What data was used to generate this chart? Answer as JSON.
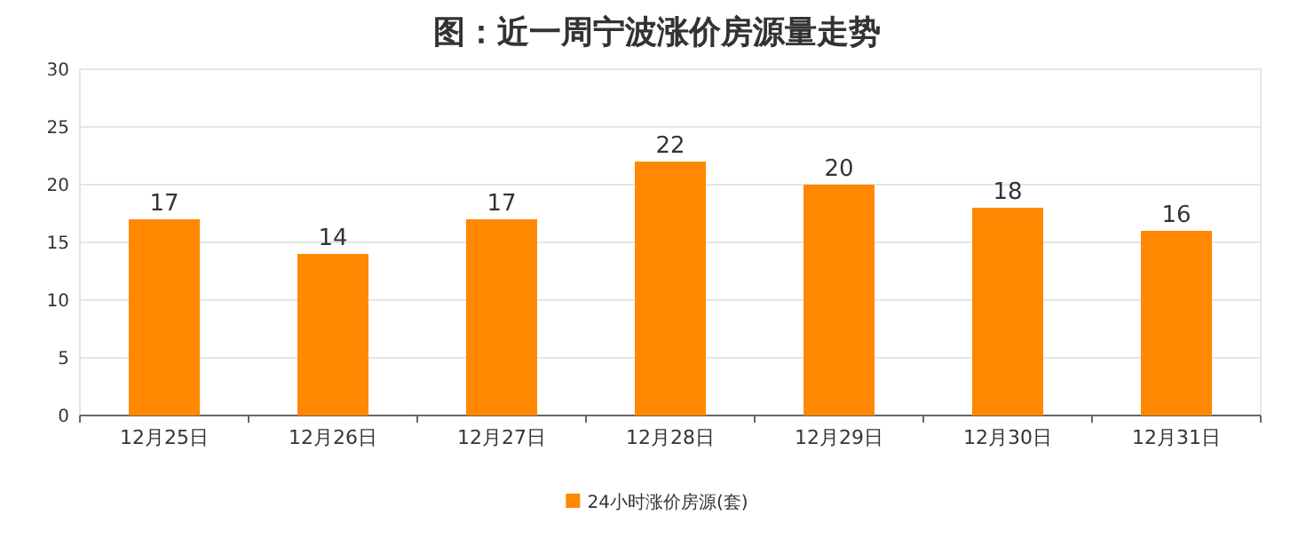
{
  "chart_data": {
    "type": "bar",
    "title": "图：近一周宁波涨价房源量走势",
    "categories": [
      "12月25日",
      "12月26日",
      "12月27日",
      "12月28日",
      "12月29日",
      "12月30日",
      "12月31日"
    ],
    "series": [
      {
        "name": "24小时涨价房源(套)",
        "color": "#ff8800",
        "values": [
          17,
          14,
          17,
          22,
          20,
          18,
          16
        ]
      }
    ],
    "ylim": [
      0,
      30
    ],
    "yticks": [
      0,
      5,
      10,
      15,
      20,
      25,
      30
    ],
    "grid": "y",
    "legend": "bottom",
    "data_labels": true
  }
}
